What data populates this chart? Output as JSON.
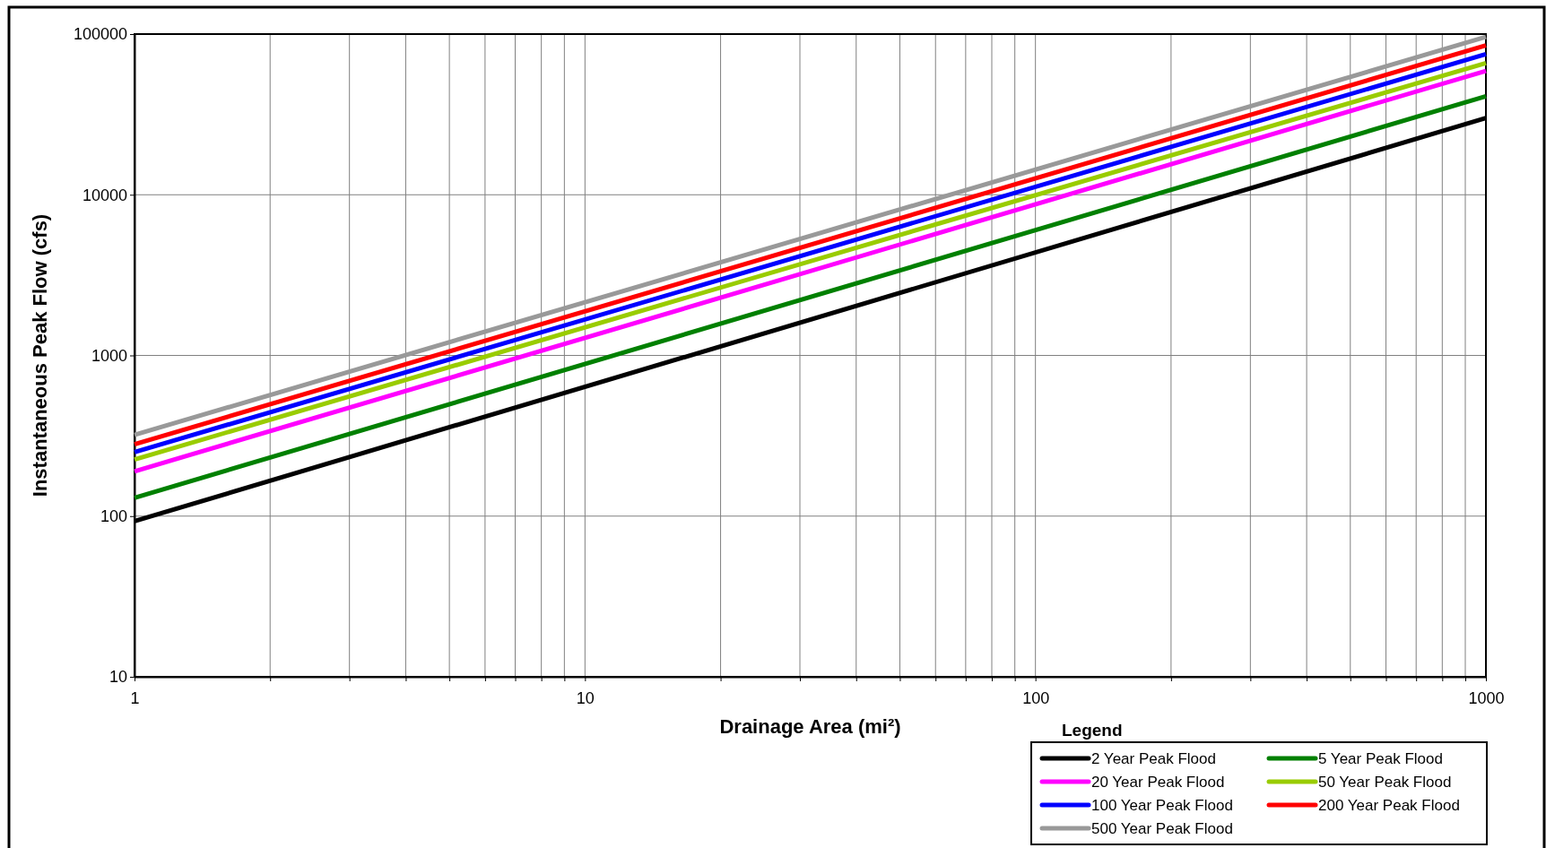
{
  "chart_data": {
    "type": "line",
    "xlabel": "Drainage Area (mi²)",
    "ylabel": "Instantaneous Peak Flow (cfs)",
    "legend_title": "Legend",
    "log": "xy",
    "grid": true,
    "legend": "bottom right",
    "marker": "none",
    "line_style": "solid",
    "xlim": [
      1,
      1000
    ],
    "ylim": [
      10,
      100000
    ],
    "xticks": [
      1,
      {
        "value": 2,
        "label": null
      },
      {
        "value": 3,
        "label": null
      },
      {
        "value": 4,
        "label": null
      },
      {
        "value": 5,
        "label": null
      },
      {
        "value": 6,
        "label": null
      },
      {
        "value": 7,
        "label": null
      },
      {
        "value": 8,
        "label": null
      },
      {
        "value": 9,
        "label": null
      },
      10,
      {
        "value": 20,
        "label": null
      },
      {
        "value": 30,
        "label": null
      },
      {
        "value": 40,
        "label": null
      },
      {
        "value": 50,
        "label": null
      },
      {
        "value": 60,
        "label": null
      },
      {
        "value": 70,
        "label": null
      },
      {
        "value": 80,
        "label": null
      },
      {
        "value": 90,
        "label": null
      },
      100,
      {
        "value": 200,
        "label": null
      },
      {
        "value": 300,
        "label": null
      },
      {
        "value": 400,
        "label": null
      },
      {
        "value": 500,
        "label": null
      },
      {
        "value": 600,
        "label": null
      },
      {
        "value": 700,
        "label": null
      },
      {
        "value": 800,
        "label": null
      },
      {
        "value": 900,
        "label": null
      },
      1000
    ],
    "yticks": [
      10,
      100,
      1000,
      10000,
      100000
    ],
    "x": [
      1,
      1000
    ],
    "series": [
      {
        "name": "2 Year Peak Flood",
        "color": "#000000",
        "values": [
          93,
          30000
        ]
      },
      {
        "name": "5 Year Peak Flood",
        "color": "#008000",
        "values": [
          130,
          41000
        ]
      },
      {
        "name": "20 Year Peak Flood",
        "color": "#ff00ff",
        "values": [
          190,
          59000
        ]
      },
      {
        "name": "50 Year Peak Flood",
        "color": "#99cc00",
        "values": [
          225,
          66000
        ]
      },
      {
        "name": "100 Year Peak Flood",
        "color": "#0000ff",
        "values": [
          250,
          75000
        ]
      },
      {
        "name": "200 Year Peak Flood",
        "color": "#ff0000",
        "values": [
          280,
          85000
        ]
      },
      {
        "name": "500 Year Peak Flood",
        "color": "#999999",
        "values": [
          320,
          96000
        ]
      }
    ]
  }
}
